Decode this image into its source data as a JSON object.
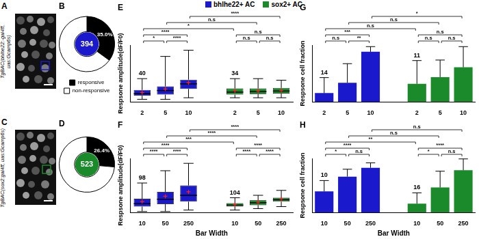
{
  "images": [
    {
      "panel": "A",
      "label": "TgBAC(bhlhe22:-gal4ff, uas:Gcamp6s)",
      "color": "#1a1acc"
    },
    {
      "panel": "C",
      "label": "TgBAC(sox2:gal4ff, uas:Gcamp6s)",
      "color": "#1b8a2b"
    }
  ],
  "chart_data": [
    {
      "panel": "B",
      "type": "doughnut",
      "categories": [
        "responsive",
        "non-responsive"
      ],
      "values": [
        35.0,
        65.0
      ],
      "value_labels": [
        "35.0%",
        null
      ],
      "colors": [
        "#000000",
        "#ffffff"
      ],
      "center": {
        "value": 394,
        "color": "#1a1acc"
      },
      "legend": "bottom"
    },
    {
      "panel": "D",
      "type": "doughnut",
      "categories": [
        "responsive",
        "non-responsive"
      ],
      "values": [
        26.4,
        73.6
      ],
      "value_labels": [
        "26.4%",
        null
      ],
      "colors": [
        "#000000",
        "#ffffff"
      ],
      "center": {
        "value": 523,
        "color": "#1b8a2b"
      }
    },
    {
      "panel": "E",
      "type": "box",
      "categories": [
        "2",
        "5",
        "10",
        null,
        "2",
        "5",
        "10"
      ],
      "y_label": "Respsone amplitude(dF/F0)",
      "ylim": [
        0,
        1.1
      ],
      "grid": false,
      "tick_labels": "x",
      "series": [
        {
          "name": "bhlhe22+ AC",
          "color": "#1a1acc",
          "n": 40,
          "whisker_low": [
            0.05,
            0.05,
            0.08,
            null,
            null,
            null,
            null
          ],
          "q1": [
            0.12,
            0.14,
            0.25,
            null,
            null,
            null,
            null
          ],
          "median": [
            0.16,
            0.22,
            0.35,
            null,
            null,
            null,
            null
          ],
          "q3": [
            0.23,
            0.3,
            0.43,
            null,
            null,
            null,
            null
          ],
          "whisker_high": [
            0.45,
            0.88,
            1.0,
            null,
            null,
            null,
            null
          ],
          "mean": [
            0.18,
            0.25,
            0.37,
            null,
            null,
            null,
            null
          ]
        },
        {
          "name": "sox2+ AC",
          "color": "#1b8a2b",
          "n": 34,
          "whisker_low": [
            null,
            null,
            null,
            null,
            0.08,
            0.08,
            0.08
          ],
          "q1": [
            null,
            null,
            null,
            null,
            0.14,
            0.15,
            0.16
          ],
          "median": [
            null,
            null,
            null,
            null,
            0.19,
            0.2,
            0.21
          ],
          "q3": [
            null,
            null,
            null,
            null,
            0.26,
            0.26,
            0.27
          ],
          "whisker_high": [
            null,
            null,
            null,
            null,
            0.45,
            0.45,
            0.42
          ],
          "mean": [
            null,
            null,
            null,
            null,
            0.21,
            0.21,
            0.22
          ]
        }
      ],
      "comparisons": [
        {
          "from": 0,
          "to": 1,
          "label": "*"
        },
        {
          "from": 1,
          "to": 2,
          "label": "****"
        },
        {
          "from": 4,
          "to": 5,
          "label": "n.s"
        },
        {
          "from": 5,
          "to": 6,
          "label": "n.s"
        },
        {
          "from": 0,
          "to": 2,
          "label": "****"
        },
        {
          "from": 4,
          "to": 6,
          "label": "n.s"
        },
        {
          "from": 0,
          "to": 4,
          "label": "*"
        },
        {
          "from": 1,
          "to": 5,
          "label": "n.s"
        },
        {
          "from": 2,
          "to": 6,
          "label": "****"
        }
      ]
    },
    {
      "panel": "F",
      "type": "box",
      "categories": [
        "10",
        "50",
        "250",
        null,
        "10",
        "50",
        "250"
      ],
      "x_label": "Bar Width",
      "y_label": "Respsone amplitude(dF/F0)",
      "ylim": [
        0,
        1.1
      ],
      "grid": false,
      "tick_labels": "x",
      "series": [
        {
          "name": "bhlhe22+ AC",
          "color": "#1a1acc",
          "n": 98,
          "whisker_low": [
            0.02,
            0.02,
            0.05,
            null,
            null,
            null,
            null
          ],
          "q1": [
            0.12,
            0.17,
            0.22,
            null,
            null,
            null,
            null
          ],
          "median": [
            0.18,
            0.27,
            0.35,
            null,
            null,
            null,
            null
          ],
          "q3": [
            0.28,
            0.42,
            0.55,
            null,
            null,
            null,
            null
          ],
          "whisker_high": [
            0.6,
            0.85,
            1.0,
            null,
            null,
            null,
            null
          ],
          "mean": [
            0.22,
            0.33,
            0.42,
            null,
            null,
            null,
            null
          ]
        },
        {
          "name": "sox2+ AC",
          "color": "#1b8a2b",
          "n": 104,
          "whisker_low": [
            null,
            null,
            null,
            null,
            0.05,
            0.08,
            0.12
          ],
          "q1": [
            null,
            null,
            null,
            null,
            0.12,
            0.15,
            0.22
          ],
          "median": [
            null,
            null,
            null,
            null,
            0.15,
            0.2,
            0.26
          ],
          "q3": [
            null,
            null,
            null,
            null,
            0.19,
            0.25,
            0.3
          ],
          "whisker_high": [
            null,
            null,
            null,
            null,
            0.3,
            0.35,
            0.45
          ],
          "mean": [
            null,
            null,
            null,
            null,
            0.16,
            0.21,
            0.27
          ]
        }
      ],
      "comparisons": [
        {
          "from": 0,
          "to": 1,
          "label": "****"
        },
        {
          "from": 1,
          "to": 2,
          "label": "****"
        },
        {
          "from": 4,
          "to": 5,
          "label": "****"
        },
        {
          "from": 5,
          "to": 6,
          "label": "****"
        },
        {
          "from": 0,
          "to": 2,
          "label": "****"
        },
        {
          "from": 4,
          "to": 6,
          "label": "****"
        },
        {
          "from": 0,
          "to": 4,
          "label": "***"
        },
        {
          "from": 1,
          "to": 5,
          "label": "****"
        },
        {
          "from": 2,
          "to": 6,
          "label": "****"
        }
      ]
    },
    {
      "panel": "G",
      "type": "bar",
      "categories": [
        "2",
        "5",
        "10",
        null,
        "2",
        "5",
        "10"
      ],
      "y_label": "Respsone cell fraction",
      "ylim": [
        0,
        1.1
      ],
      "grid": false,
      "tick_labels": "x",
      "series": [
        {
          "name": "bhlhe22+ AC",
          "color": "#1a1acc",
          "n": 14,
          "values": [
            0.17,
            0.37,
            0.97,
            null,
            null,
            null,
            null
          ],
          "errors": [
            0.3,
            0.37,
            0.1,
            null,
            null,
            null,
            null
          ]
        },
        {
          "name": "sox2+ AC",
          "color": "#1b8a2b",
          "n": 11,
          "values": [
            null,
            null,
            null,
            null,
            0.35,
            0.48,
            0.67
          ],
          "errors": [
            null,
            null,
            null,
            null,
            0.45,
            0.33,
            0.4
          ]
        }
      ],
      "comparisons": [
        {
          "from": 0,
          "to": 1,
          "label": "n.s"
        },
        {
          "from": 1,
          "to": 2,
          "label": "**"
        },
        {
          "from": 4,
          "to": 5,
          "label": "n.s"
        },
        {
          "from": 5,
          "to": 6,
          "label": "n.s"
        },
        {
          "from": 0,
          "to": 2,
          "label": "***"
        },
        {
          "from": 4,
          "to": 6,
          "label": "n.s"
        },
        {
          "from": 0,
          "to": 4,
          "label": "n.s"
        },
        {
          "from": 1,
          "to": 5,
          "label": "n.s"
        },
        {
          "from": 2,
          "to": 6,
          "label": "*"
        }
      ]
    },
    {
      "panel": "H",
      "type": "bar",
      "categories": [
        "10",
        "50",
        "250",
        null,
        "10",
        "50",
        "250"
      ],
      "x_label": "Bar Width",
      "y_label": "Respsone cell fraction",
      "ylim": [
        0,
        1.1
      ],
      "grid": false,
      "tick_labels": "x",
      "series": [
        {
          "name": "bhlhe22+ AC",
          "color": "#1a1acc",
          "n": 10,
          "values": [
            0.43,
            0.73,
            0.91,
            null,
            null,
            null,
            null
          ],
          "errors": [
            0.22,
            0.15,
            0.1,
            null,
            null,
            null,
            null
          ]
        },
        {
          "name": "sox2+ AC",
          "color": "#1b8a2b",
          "n": 16,
          "values": [
            null,
            null,
            null,
            null,
            0.18,
            0.51,
            0.86
          ],
          "errors": [
            null,
            null,
            null,
            null,
            0.22,
            0.33,
            0.23
          ]
        }
      ],
      "comparisons": [
        {
          "from": 0,
          "to": 1,
          "label": "*"
        },
        {
          "from": 1,
          "to": 2,
          "label": "n.s"
        },
        {
          "from": 4,
          "to": 5,
          "label": "*"
        },
        {
          "from": 5,
          "to": 6,
          "label": "n.s"
        },
        {
          "from": 0,
          "to": 2,
          "label": "****"
        },
        {
          "from": 4,
          "to": 6,
          "label": "****"
        },
        {
          "from": 0,
          "to": 4,
          "label": "**"
        },
        {
          "from": 1,
          "to": 5,
          "label": "n.s"
        },
        {
          "from": 2,
          "to": 6,
          "label": "n.s"
        }
      ]
    }
  ]
}
